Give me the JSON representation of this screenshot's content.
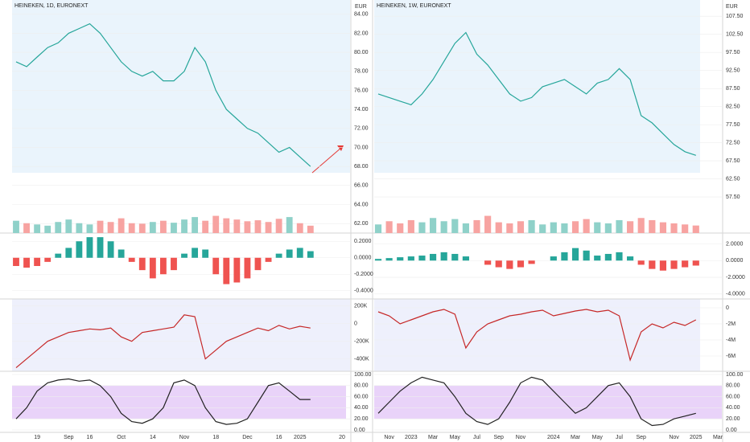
{
  "chart_data": [
    {
      "type": "line",
      "title": "HEINEKEN, 1D, EURONEXT",
      "y_label": "EUR",
      "color": "#26a69a",
      "values": [
        79,
        78.5,
        79.5,
        80.5,
        81,
        82,
        82.5,
        83,
        82,
        80.5,
        79,
        78,
        77.5,
        78,
        77,
        77,
        78,
        80.5,
        79,
        76,
        74,
        73,
        72,
        71.5,
        70.5,
        69.5,
        70,
        69,
        68,
        null,
        null,
        null
      ],
      "ylim": [
        61,
        85.5
      ],
      "yticks": [
        {
          "value": 84,
          "label": "84.00"
        },
        {
          "value": 82,
          "label": "82.00"
        },
        {
          "value": 80,
          "label": "80.00"
        },
        {
          "value": 78,
          "label": "78.00"
        },
        {
          "value": 76,
          "label": "76.00"
        },
        {
          "value": 74,
          "label": "74.00"
        },
        {
          "value": 72,
          "label": "72.00"
        },
        {
          "value": 70,
          "label": "70.00"
        },
        {
          "value": 68,
          "label": "68.00"
        },
        {
          "value": 66,
          "label": "66.00"
        },
        {
          "value": 64,
          "label": "64.00"
        },
        {
          "value": 62,
          "label": "62.00"
        }
      ]
    },
    {
      "type": "volume",
      "up_color": "#8fd1c9",
      "down_color": "#f7a3a1",
      "values": [
        50,
        40,
        35,
        30,
        45,
        55,
        40,
        35,
        50,
        45,
        60,
        40,
        38,
        45,
        50,
        42,
        55,
        65,
        50,
        70,
        60,
        55,
        48,
        52,
        45,
        58,
        65,
        40,
        30,
        null,
        null,
        null
      ]
    },
    {
      "type": "bar",
      "up_color": "#26a69a",
      "down_color": "#ef5350",
      "values": [
        -0.1,
        -0.12,
        -0.1,
        -0.05,
        0.05,
        0.12,
        0.2,
        0.25,
        0.25,
        0.2,
        0.1,
        -0.05,
        -0.15,
        -0.25,
        -0.2,
        -0.15,
        0.05,
        0.12,
        0.1,
        -0.2,
        -0.32,
        -0.3,
        -0.25,
        -0.15,
        -0.05,
        0.05,
        0.1,
        0.12,
        0.08,
        null,
        null,
        null
      ],
      "ylim": [
        -0.5,
        0.3
      ],
      "yticks": [
        {
          "value": 0.2,
          "label": "0.2000"
        },
        {
          "value": 0,
          "label": "0.0000"
        },
        {
          "value": -0.2,
          "label": "-0.2000"
        },
        {
          "value": -0.4,
          "label": "-0.4000"
        }
      ]
    },
    {
      "type": "line",
      "color": "#c62828",
      "values": [
        -500000,
        -400000,
        -300000,
        -200000,
        -150000,
        -100000,
        -80000,
        -60000,
        -70000,
        -50000,
        -150000,
        -200000,
        -100000,
        -80000,
        -60000,
        -40000,
        100000,
        80000,
        -400000,
        -300000,
        -200000,
        -150000,
        -100000,
        -50000,
        -80000,
        -20000,
        -60000,
        -30000,
        -50000,
        null,
        null,
        null
      ],
      "ylim": [
        -540000,
        280000
      ],
      "yticks": [
        {
          "value": 200000,
          "label": "200K"
        },
        0,
        {
          "value": -200000,
          "label": "-200K"
        },
        {
          "value": -400000,
          "label": "-400K"
        }
      ]
    },
    {
      "type": "line",
      "color": "#222222",
      "band": [
        20,
        80
      ],
      "band_color": "#e4c8f7",
      "values": [
        20,
        40,
        70,
        85,
        90,
        92,
        88,
        90,
        80,
        60,
        30,
        15,
        12,
        20,
        40,
        85,
        90,
        80,
        40,
        15,
        10,
        12,
        20,
        50,
        80,
        85,
        70,
        55,
        55,
        null,
        null,
        null
      ],
      "categories": [
        null,
        null,
        "19",
        null,
        null,
        "Sep",
        null,
        "16",
        null,
        null,
        "Oct",
        null,
        null,
        "14",
        null,
        null,
        "Nov",
        null,
        null,
        "18",
        null,
        null,
        "Dec",
        null,
        null,
        "16",
        null,
        "2025",
        null,
        null,
        null,
        "20"
      ],
      "ylim": [
        0,
        100
      ],
      "yticks": [
        {
          "value": 100,
          "label": "100.00"
        },
        {
          "value": 80,
          "label": "80.00"
        },
        {
          "value": 60,
          "label": "60.00"
        },
        {
          "value": 40,
          "label": "40.00"
        },
        {
          "value": 20,
          "label": "20.00"
        },
        {
          "value": 0,
          "label": "0.00"
        }
      ]
    },
    {
      "type": "line",
      "title": "HEINEKEN, 1W, EURONEXT",
      "y_label": "EUR",
      "color": "#26a69a",
      "values": [
        86,
        85,
        84,
        83,
        86,
        90,
        95,
        100,
        103,
        97,
        94,
        90,
        86,
        84,
        85,
        88,
        89,
        90,
        88,
        86,
        89,
        90,
        93,
        90,
        80,
        78,
        75,
        72,
        70,
        69,
        null,
        null
      ],
      "ylim": [
        47.5,
        112
      ],
      "yticks": [
        {
          "value": 107.5,
          "label": "107.50"
        },
        {
          "value": 102.5,
          "label": "102.50"
        },
        {
          "value": 97.5,
          "label": "97.50"
        },
        {
          "value": 92.5,
          "label": "92.50"
        },
        {
          "value": 87.5,
          "label": "87.50"
        },
        {
          "value": 82.5,
          "label": "82.50"
        },
        {
          "value": 77.5,
          "label": "77.50"
        },
        {
          "value": 72.5,
          "label": "72.50"
        },
        {
          "value": 67.5,
          "label": "67.50"
        },
        {
          "value": 62.5,
          "label": "62.50"
        },
        {
          "value": 57.5,
          "label": "57.50"
        }
      ]
    },
    {
      "type": "volume",
      "up_color": "#8fd1c9",
      "down_color": "#f7a3a1",
      "values": [
        40,
        55,
        45,
        60,
        50,
        70,
        55,
        65,
        45,
        60,
        80,
        50,
        45,
        55,
        60,
        40,
        50,
        45,
        55,
        65,
        50,
        45,
        60,
        55,
        70,
        60,
        50,
        45,
        40,
        35,
        null,
        null
      ]
    },
    {
      "type": "bar",
      "up_color": "#26a69a",
      "down_color": "#ef5350",
      "values": [
        0.2,
        0.3,
        0.4,
        0.5,
        0.6,
        0.8,
        1.0,
        0.8,
        0.5,
        0,
        -0.5,
        -0.8,
        -1.0,
        -0.8,
        -0.4,
        0,
        0.5,
        1.0,
        1.5,
        1.2,
        0.6,
        0.8,
        1.0,
        0.5,
        -0.5,
        -1.0,
        -1.2,
        -1.0,
        -0.8,
        -0.6,
        null,
        null
      ],
      "ylim": [
        -4.6,
        3.3
      ],
      "yticks": [
        {
          "value": 2,
          "label": "2.0000"
        },
        {
          "value": 0,
          "label": "0.0000"
        },
        {
          "value": -2,
          "label": "-2.0000"
        },
        {
          "value": -4,
          "label": "-4.0000"
        }
      ]
    },
    {
      "type": "line",
      "color": "#c62828",
      "values": [
        -500000,
        -1000000,
        -2000000,
        -1500000,
        -1000000,
        -500000,
        -200000,
        -800000,
        -5000000,
        -3000000,
        -2000000,
        -1500000,
        -1000000,
        -800000,
        -500000,
        -300000,
        -1000000,
        -700000,
        -400000,
        -200000,
        -500000,
        -300000,
        -1000000,
        -6500000,
        -3000000,
        -2000000,
        -2500000,
        -1800000,
        -2200000,
        -1500000,
        null,
        null
      ],
      "ylim": [
        -7900000,
        1100000
      ],
      "yticks": [
        0,
        {
          "value": -2000000,
          "label": "-2M"
        },
        {
          "value": -4000000,
          "label": "-4M"
        },
        {
          "value": -6000000,
          "label": "-6M"
        }
      ]
    },
    {
      "type": "line",
      "color": "#222222",
      "band": [
        20,
        80
      ],
      "band_color": "#e4c8f7",
      "values": [
        30,
        50,
        70,
        85,
        95,
        90,
        85,
        60,
        30,
        15,
        10,
        20,
        50,
        85,
        95,
        90,
        70,
        50,
        30,
        40,
        60,
        80,
        85,
        60,
        20,
        8,
        10,
        20,
        25,
        30,
        null,
        null
      ],
      "categories": [
        null,
        "Nov",
        null,
        "2023",
        null,
        "Mar",
        null,
        "May",
        null,
        "Jul",
        null,
        "Sep",
        null,
        "Nov",
        null,
        null,
        "2024",
        null,
        "Mar",
        null,
        "May",
        null,
        "Jul",
        null,
        "Sep",
        null,
        null,
        "Nov",
        null,
        "2025",
        null,
        "Mar"
      ],
      "ylim": [
        0,
        100
      ],
      "yticks": [
        {
          "value": 100,
          "label": "100.00"
        },
        {
          "value": 80,
          "label": "80.00"
        },
        {
          "value": 60,
          "label": "60.00"
        },
        {
          "value": 40,
          "label": "40.00"
        },
        {
          "value": 20,
          "label": "20.00"
        },
        {
          "value": 0,
          "label": "0.00"
        }
      ]
    }
  ]
}
